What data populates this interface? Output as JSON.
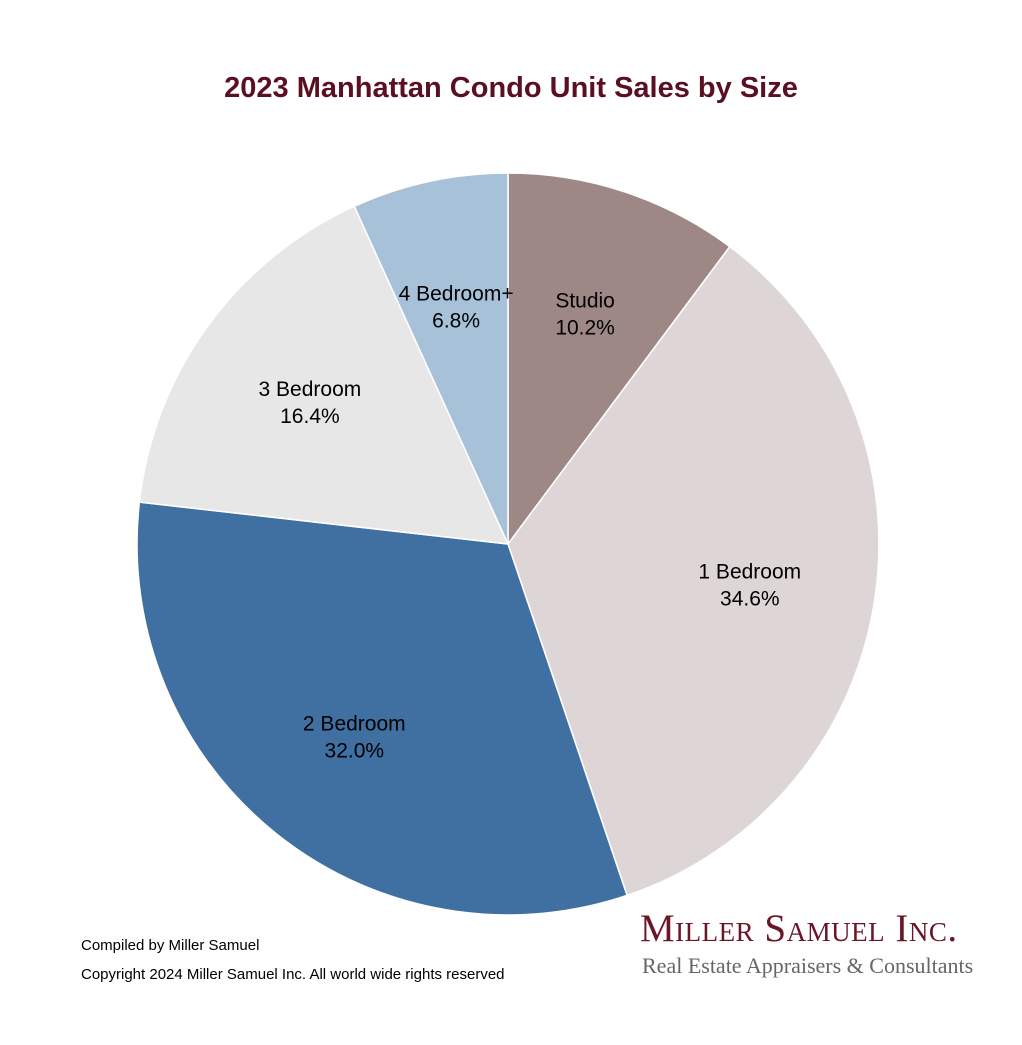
{
  "chart_data": {
    "type": "pie",
    "title": "2023 Manhattan Condo Unit Sales by Size",
    "slices": [
      {
        "label": "Studio",
        "value": 10.2,
        "value_label": "10.2%",
        "color": "#9d8886"
      },
      {
        "label": "1 Bedroom",
        "value": 34.6,
        "value_label": "34.6%",
        "color": "#ded5d6"
      },
      {
        "label": "2 Bedroom",
        "value": 32.0,
        "value_label": "32.0%",
        "color": "#406fa1"
      },
      {
        "label": "3 Bedroom",
        "value": 16.4,
        "value_label": "16.4%",
        "color": "#e8e7e8"
      },
      {
        "label": "4 Bedroom+",
        "value": 6.8,
        "value_label": "6.8%",
        "color": "#a6c1d8"
      }
    ],
    "start_angle_deg": 0,
    "direction": "clockwise",
    "legend": "none"
  },
  "footer": {
    "compiled_by": "Compiled by Miller Samuel",
    "copyright": "Copyright 2024 Miller Samuel Inc. All world wide rights reserved"
  },
  "logo": {
    "name": "Miller Samuel Inc.",
    "tagline": "Real Estate Appraisers & Consultants"
  }
}
